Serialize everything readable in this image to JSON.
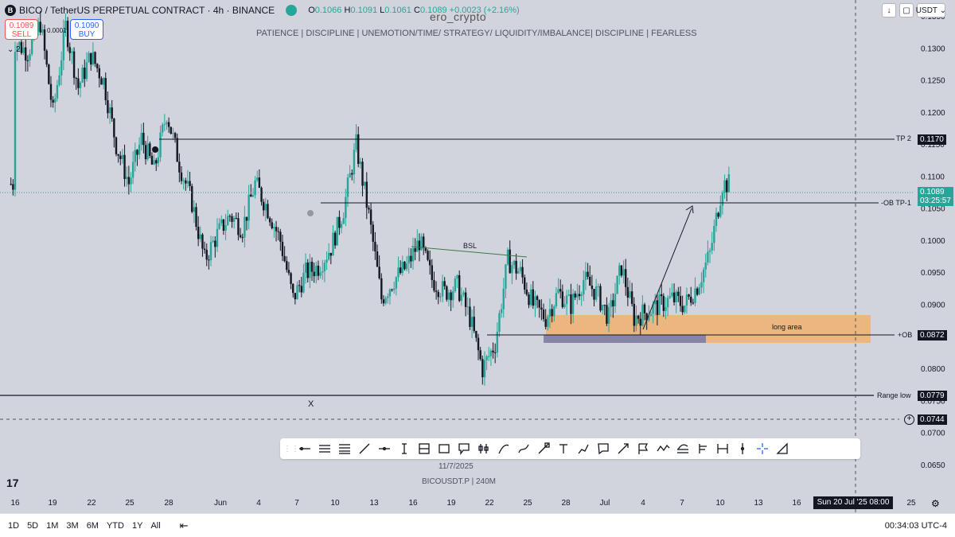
{
  "header": {
    "symbol": "BICO / TetherUS PERPETUAL CONTRACT · 4h · BINANCE",
    "open_label": "O",
    "open": "0.1066",
    "high_label": "H",
    "high": "0.1091",
    "low_label": "L",
    "low": "0.1061",
    "close_label": "C",
    "close": "0.1089",
    "change": "+0.0023 (+2.16%)"
  },
  "watermark": "ero_crypto",
  "slogan": "PATIENCE   |   DISCIPLINE   |   UNEMOTION/TIME/ STRATEGY/ LIQUIDITY/IMBALANCE|   DISCIPLINE   |   FEARLESS",
  "trade": {
    "sell_price": "0.1089",
    "sell_label": "SELL",
    "spread": "0.0001",
    "buy_price": "0.1090",
    "buy_label": "BUY"
  },
  "legend_count": "2",
  "currency": "USDT",
  "chart_data": {
    "type": "candlestick",
    "y_axis_ticks": [
      "0.1350",
      "0.1300",
      "0.1250",
      "0.1200",
      "0.1150",
      "0.1100",
      "0.1050",
      "0.1000",
      "0.0950",
      "0.0900",
      "0.0850",
      "0.0800",
      "0.0750",
      "0.0700",
      "0.0650"
    ],
    "y_range": [
      0.0625,
      0.1345
    ],
    "x_axis_ticks": [
      "16",
      "19",
      "22",
      "25",
      "28",
      "Jun",
      "4",
      "7",
      "10",
      "13",
      "16",
      "19",
      "22",
      "25",
      "28",
      "Jul",
      "4",
      "7",
      "10",
      "13",
      "16",
      "19",
      "22",
      "25"
    ],
    "x_domain": [
      "2025-05-16",
      "2025-07-26"
    ],
    "current_price": "0.1089",
    "countdown": "03:25:57",
    "price_path": [
      [
        "2025-05-16",
        0.131
      ],
      [
        "2025-05-17",
        0.1295
      ],
      [
        "2025-05-18",
        0.134
      ],
      [
        "2025-05-19",
        0.12
      ],
      [
        "2025-05-20",
        0.1335
      ],
      [
        "2025-05-21",
        0.124
      ],
      [
        "2025-05-22",
        0.129
      ],
      [
        "2025-05-23",
        0.125
      ],
      [
        "2025-05-24",
        0.115
      ],
      [
        "2025-05-25",
        0.109
      ],
      [
        "2025-05-26",
        0.116
      ],
      [
        "2025-05-27",
        0.111
      ],
      [
        "2025-05-28",
        0.12
      ],
      [
        "2025-05-29",
        0.112
      ],
      [
        "2025-05-30",
        0.106
      ],
      [
        "2025-05-31",
        0.097
      ],
      [
        "2025-06-01",
        0.101
      ],
      [
        "2025-06-02",
        0.104
      ],
      [
        "2025-06-03",
        0.102
      ],
      [
        "2025-06-04",
        0.109
      ],
      [
        "2025-06-05",
        0.105
      ],
      [
        "2025-06-06",
        0.1
      ],
      [
        "2025-06-07",
        0.091
      ],
      [
        "2025-06-08",
        0.095
      ],
      [
        "2025-06-09",
        0.096
      ],
      [
        "2025-06-10",
        0.099
      ],
      [
        "2025-06-11",
        0.105
      ],
      [
        "2025-06-12",
        0.115
      ],
      [
        "2025-06-13",
        0.104
      ],
      [
        "2025-06-14",
        0.091
      ],
      [
        "2025-06-15",
        0.094
      ],
      [
        "2025-06-16",
        0.096
      ],
      [
        "2025-06-17",
        0.1
      ],
      [
        "2025-06-18",
        0.094
      ],
      [
        "2025-06-19",
        0.092
      ],
      [
        "2025-06-20",
        0.093
      ],
      [
        "2025-06-21",
        0.088
      ],
      [
        "2025-06-22",
        0.08
      ],
      [
        "2025-06-23",
        0.084
      ],
      [
        "2025-06-24",
        0.097
      ],
      [
        "2025-06-25",
        0.095
      ],
      [
        "2025-06-26",
        0.09
      ],
      [
        "2025-06-27",
        0.088
      ],
      [
        "2025-06-28",
        0.092
      ],
      [
        "2025-06-29",
        0.09
      ],
      [
        "2025-06-30",
        0.094
      ],
      [
        "2025-07-01",
        0.092
      ],
      [
        "2025-07-02",
        0.088
      ],
      [
        "2025-07-03",
        0.096
      ],
      [
        "2025-07-04",
        0.088
      ],
      [
        "2025-07-05",
        0.089
      ],
      [
        "2025-07-06",
        0.09
      ],
      [
        "2025-07-07",
        0.091
      ],
      [
        "2025-07-08",
        0.09
      ],
      [
        "2025-07-09",
        0.093
      ],
      [
        "2025-07-10",
        0.098
      ],
      [
        "2025-07-11",
        0.1089
      ]
    ],
    "annotations": {
      "tp2": {
        "label": "TP 2",
        "value": "0.1170"
      },
      "ob_tp1": {
        "label": "-OB TP-1"
      },
      "ob": {
        "label": "+OB",
        "value": "0.0872"
      },
      "range_low": {
        "label": "Range low",
        "value": "0.0779"
      },
      "lower_level": {
        "value": "0.0744"
      },
      "bsl": {
        "label": "BSL"
      },
      "long_area": {
        "label": "long area"
      },
      "x_mark": {
        "label": "X"
      }
    }
  },
  "toolbar": {
    "tools": [
      "horizontal-ray",
      "parallel-channel",
      "multi-line",
      "trend-line",
      "ray",
      "text-cursor",
      "fib-tool",
      "rectangle",
      "callout",
      "long-position",
      "curve",
      "brush",
      "marker",
      "text",
      "path",
      "comment",
      "arrow",
      "flag",
      "zigzag",
      "measure-multi",
      "pitchfork",
      "date-range",
      "vertical-line",
      "crosshair",
      "anchor"
    ]
  },
  "date_label": "11/7/2025",
  "symbol_label": "BICOUSDT.P  |  240M",
  "crosshair_date": "Sun 20 Jul '25   08:00",
  "ranges": [
    "1D",
    "5D",
    "1M",
    "3M",
    "6M",
    "YTD",
    "1Y",
    "All"
  ],
  "clock": "00:34:03 UTC-4",
  "colors": {
    "background": "#d1d4dc",
    "up": "#26a69a",
    "down": "#131722",
    "long_area": "#f0b070",
    "ob_zone": "#7c7ea8",
    "current_price": "#26a69a"
  }
}
